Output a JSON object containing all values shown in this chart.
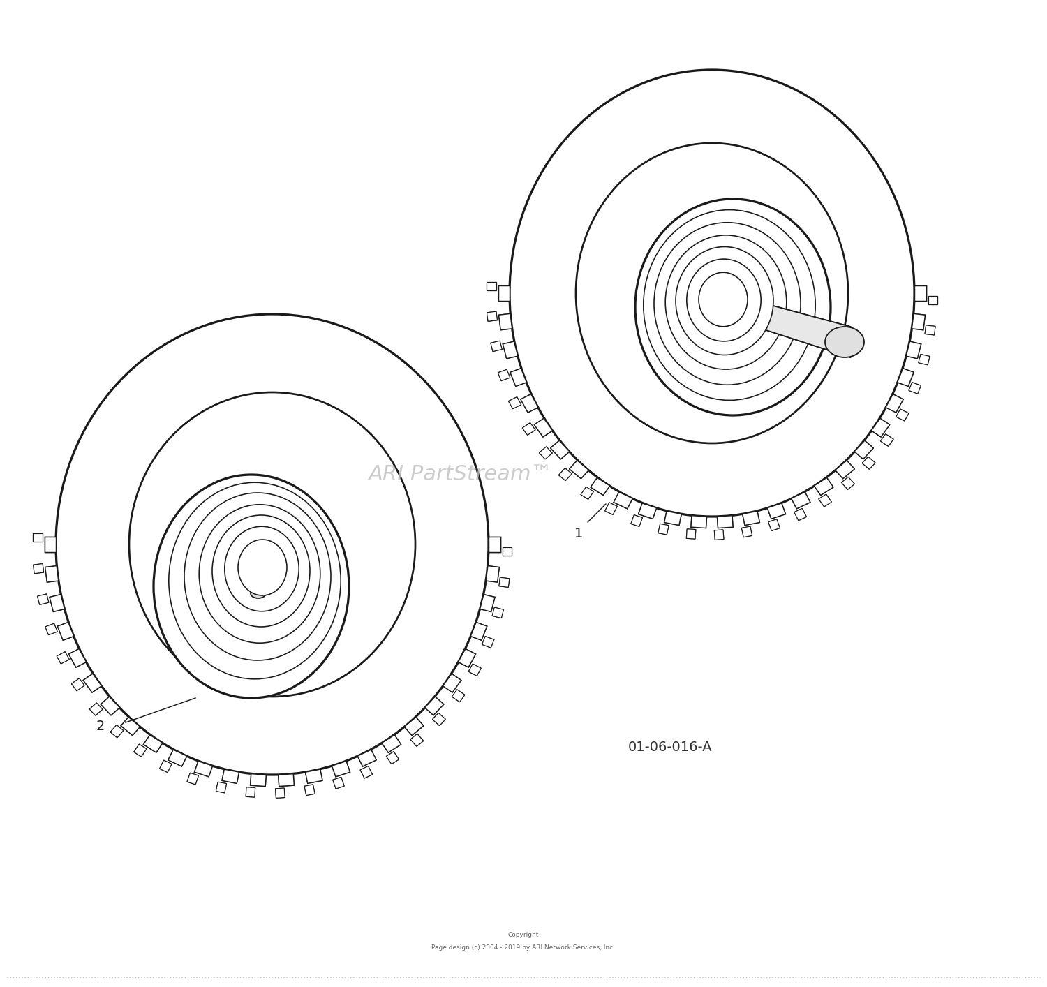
{
  "background_color": "#ffffff",
  "watermark_text": "ARI PartStream™",
  "watermark_color": "#c0c0c0",
  "diagram_code": "01-06-016-A",
  "label1": "1",
  "label2": "2",
  "label_fontsize": 14,
  "copyright_line1": "Copyright",
  "copyright_line2": "Page design (c) 2004 - 2019 by ARI Network Services, Inc.",
  "copyright_fontsize": 6.5,
  "line_color": "#1a1a1a",
  "line_width": 1.3
}
